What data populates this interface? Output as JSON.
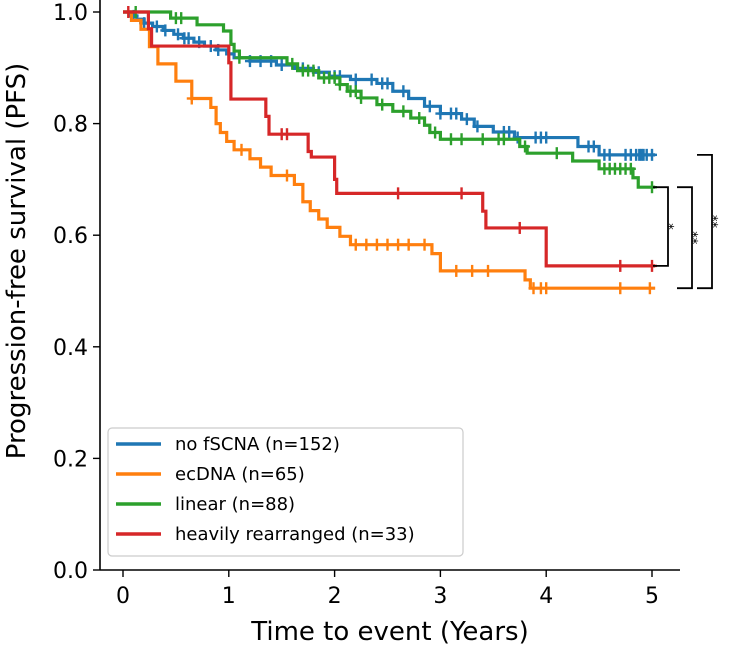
{
  "chart_data": {
    "type": "line",
    "xlabel": "Time to event (Years)",
    "ylabel": "Progression-free survival (PFS)",
    "xlim": [
      -0.2,
      5.25
    ],
    "ylim": [
      0.0,
      1.02
    ],
    "x_ticks": [
      0,
      1,
      2,
      3,
      4,
      5
    ],
    "x_tick_labels": [
      "0",
      "1",
      "2",
      "3",
      "4",
      "5"
    ],
    "y_ticks": [
      0.0,
      0.2,
      0.4,
      0.6,
      0.8,
      1.0
    ],
    "y_tick_labels": [
      "0.0",
      "0.2",
      "0.4",
      "0.6",
      "0.8",
      "1.0"
    ],
    "grid": false,
    "legend_position": "lower-left",
    "series": [
      {
        "name": "no fSCNA (n=152)",
        "color": "#1f77b4",
        "steps": [
          [
            0,
            1.0
          ],
          [
            0.07,
            0.993
          ],
          [
            0.13,
            0.987
          ],
          [
            0.2,
            0.98
          ],
          [
            0.28,
            0.974
          ],
          [
            0.38,
            0.967
          ],
          [
            0.48,
            0.96
          ],
          [
            0.57,
            0.953
          ],
          [
            0.67,
            0.946
          ],
          [
            0.77,
            0.939
          ],
          [
            0.88,
            0.932
          ],
          [
            0.98,
            0.925
          ],
          [
            1.05,
            0.918
          ],
          [
            1.2,
            0.912
          ],
          [
            1.45,
            0.905
          ],
          [
            1.62,
            0.899
          ],
          [
            1.8,
            0.892
          ],
          [
            1.95,
            0.885
          ],
          [
            2.15,
            0.879
          ],
          [
            2.4,
            0.872
          ],
          [
            2.55,
            0.858
          ],
          [
            2.7,
            0.845
          ],
          [
            2.85,
            0.831
          ],
          [
            3.0,
            0.818
          ],
          [
            3.2,
            0.808
          ],
          [
            3.32,
            0.795
          ],
          [
            3.5,
            0.785
          ],
          [
            3.7,
            0.775
          ],
          [
            4.3,
            0.759
          ],
          [
            4.5,
            0.744
          ],
          [
            5.03,
            0.744
          ]
        ],
        "censor_x": [
          0.1,
          0.2,
          0.32,
          0.4,
          0.52,
          0.58,
          0.62,
          0.72,
          0.83,
          0.9,
          1.2,
          1.3,
          1.4,
          1.5,
          1.7,
          1.85,
          2.0,
          2.05,
          2.2,
          2.35,
          2.45,
          2.5,
          2.65,
          2.9,
          3.0,
          3.1,
          3.15,
          3.25,
          3.35,
          3.6,
          3.65,
          3.73,
          3.9,
          3.95,
          4.0,
          4.4,
          4.45,
          4.55,
          4.6,
          4.75,
          4.8,
          4.85,
          4.88,
          4.9,
          4.92,
          4.95,
          5.0
        ]
      },
      {
        "name": "ecDNA (n=65)",
        "color": "#ff7f0e",
        "steps": [
          [
            0,
            1.0
          ],
          [
            0.08,
            0.985
          ],
          [
            0.17,
            0.969
          ],
          [
            0.25,
            0.938
          ],
          [
            0.33,
            0.907
          ],
          [
            0.5,
            0.876
          ],
          [
            0.65,
            0.845
          ],
          [
            0.83,
            0.829
          ],
          [
            0.88,
            0.8
          ],
          [
            0.92,
            0.784
          ],
          [
            0.98,
            0.768
          ],
          [
            1.05,
            0.753
          ],
          [
            1.2,
            0.737
          ],
          [
            1.3,
            0.722
          ],
          [
            1.4,
            0.707
          ],
          [
            1.62,
            0.691
          ],
          [
            1.7,
            0.66
          ],
          [
            1.77,
            0.644
          ],
          [
            1.85,
            0.629
          ],
          [
            1.93,
            0.614
          ],
          [
            2.05,
            0.598
          ],
          [
            2.15,
            0.583
          ],
          [
            2.92,
            0.567
          ],
          [
            3.0,
            0.536
          ],
          [
            3.8,
            0.52
          ],
          [
            3.85,
            0.505
          ],
          [
            5.03,
            0.505
          ]
        ],
        "censor_x": [
          0.65,
          1.12,
          1.55,
          2.2,
          2.3,
          2.4,
          2.5,
          2.6,
          2.7,
          2.85,
          3.15,
          3.3,
          3.45,
          3.88,
          3.95,
          4.0,
          4.7,
          4.98
        ]
      },
      {
        "name": "linear (n=88)",
        "color": "#2ca02c",
        "steps": [
          [
            0,
            1.0
          ],
          [
            0.45,
            0.989
          ],
          [
            0.7,
            0.977
          ],
          [
            0.95,
            0.966
          ],
          [
            1.02,
            0.942
          ],
          [
            1.05,
            0.93
          ],
          [
            1.1,
            0.918
          ],
          [
            1.55,
            0.907
          ],
          [
            1.65,
            0.895
          ],
          [
            1.85,
            0.882
          ],
          [
            2.05,
            0.87
          ],
          [
            2.12,
            0.858
          ],
          [
            2.25,
            0.846
          ],
          [
            2.4,
            0.834
          ],
          [
            2.55,
            0.822
          ],
          [
            2.72,
            0.81
          ],
          [
            2.85,
            0.797
          ],
          [
            2.9,
            0.784
          ],
          [
            3.0,
            0.772
          ],
          [
            3.75,
            0.759
          ],
          [
            3.82,
            0.747
          ],
          [
            4.25,
            0.733
          ],
          [
            4.5,
            0.719
          ],
          [
            4.82,
            0.703
          ],
          [
            4.87,
            0.686
          ],
          [
            5.03,
            0.686
          ]
        ],
        "censor_x": [
          0.12,
          0.5,
          0.55,
          1.1,
          1.6,
          1.7,
          1.75,
          1.8,
          1.9,
          1.95,
          2.0,
          2.05,
          2.15,
          2.2,
          2.25,
          2.45,
          2.65,
          2.8,
          2.95,
          3.1,
          3.2,
          3.4,
          3.55,
          3.6,
          3.8,
          4.1,
          4.55,
          4.6,
          4.65,
          4.7,
          4.75,
          4.8,
          5.0
        ]
      },
      {
        "name": "heavily rearranged (n=33)",
        "color": "#d62728",
        "steps": [
          [
            0,
            1.0
          ],
          [
            0.24,
            0.97
          ],
          [
            0.27,
            0.939
          ],
          [
            1.0,
            0.909
          ],
          [
            1.02,
            0.844
          ],
          [
            1.35,
            0.813
          ],
          [
            1.38,
            0.781
          ],
          [
            1.75,
            0.75
          ],
          [
            1.78,
            0.74
          ],
          [
            2.0,
            0.7
          ],
          [
            2.02,
            0.675
          ],
          [
            3.4,
            0.643
          ],
          [
            3.43,
            0.613
          ],
          [
            4.0,
            0.545
          ],
          [
            5.03,
            0.545
          ]
        ],
        "censor_x": [
          0.05,
          1.5,
          1.55,
          2.6,
          3.2,
          3.75,
          4.7,
          5.0
        ]
      }
    ],
    "significance": [
      {
        "label": "*",
        "between": [
          "linear (n=88)",
          "heavily rearranged (n=33)"
        ],
        "y": [
          0.686,
          0.545
        ]
      },
      {
        "label": "**",
        "between": [
          "linear (n=88)",
          "ecDNA (n=65)"
        ],
        "y": [
          0.686,
          0.505
        ]
      },
      {
        "label": "**",
        "between": [
          "no fSCNA (n=152)",
          "ecDNA (n=65)"
        ],
        "y": [
          0.744,
          0.505
        ]
      }
    ]
  }
}
